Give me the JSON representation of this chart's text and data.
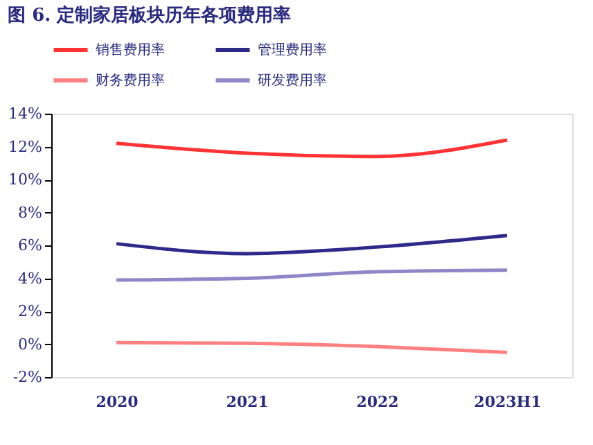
{
  "chart_data": {
    "type": "line",
    "title": "图 6. 定制家居板块历年各项费用率",
    "categories": [
      "2020",
      "2021",
      "2022",
      "2023H1"
    ],
    "series": [
      {
        "name": "销售费用率",
        "color": "#ff3333",
        "values": [
          12.2,
          11.6,
          11.4,
          12.4
        ]
      },
      {
        "name": "管理费用率",
        "color": "#2e2a8a",
        "values": [
          6.1,
          5.5,
          5.9,
          6.6
        ]
      },
      {
        "name": "财务费用率",
        "color": "#ff8080",
        "values": [
          0.1,
          0.05,
          -0.15,
          -0.5
        ]
      },
      {
        "name": "研发费用率",
        "color": "#8f86c8",
        "values": [
          3.9,
          4.0,
          4.4,
          4.5
        ]
      }
    ],
    "ylim": [
      -2,
      14
    ],
    "yticks": [
      {
        "value": -2,
        "label": "-2%"
      },
      {
        "value": 0,
        "label": "0%"
      },
      {
        "value": 2,
        "label": "2%"
      },
      {
        "value": 4,
        "label": "4%"
      },
      {
        "value": 6,
        "label": "6%"
      },
      {
        "value": 8,
        "label": "8%"
      },
      {
        "value": 10,
        "label": "10%"
      },
      {
        "value": 12,
        "label": "12%"
      },
      {
        "value": 14,
        "label": "14%"
      }
    ],
    "grid": false,
    "legend": "top",
    "marker": "none",
    "line_style": "solid"
  }
}
